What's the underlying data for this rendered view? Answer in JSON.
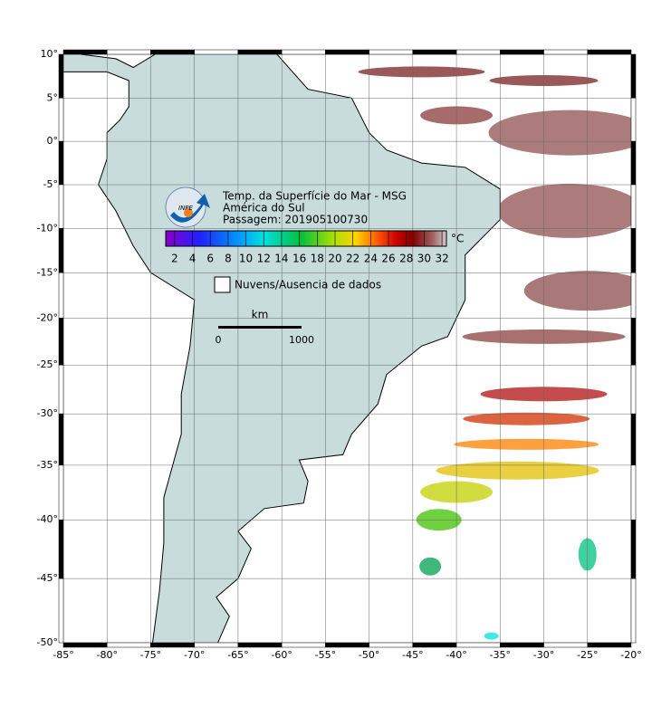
{
  "map": {
    "title_lines": [
      "Temp. da Superfície do Mar - MSG",
      "América do Sul",
      "Passagem: 201905100730"
    ],
    "logo_text": "INPE",
    "lonlim": [
      -85,
      -20
    ],
    "latlim": [
      -50,
      10
    ],
    "lonticks": [
      {
        "value": -85,
        "label": "-85°"
      },
      {
        "value": -80,
        "label": "-80°"
      },
      {
        "value": -75,
        "label": "-75°"
      },
      {
        "value": -70,
        "label": "-70°"
      },
      {
        "value": -65,
        "label": "-65°"
      },
      {
        "value": -60,
        "label": "-60°"
      },
      {
        "value": -55,
        "label": "-55°"
      },
      {
        "value": -50,
        "label": "-50°"
      },
      {
        "value": -45,
        "label": "-45°"
      },
      {
        "value": -40,
        "label": "-40°"
      },
      {
        "value": -35,
        "label": "-35°"
      },
      {
        "value": -30,
        "label": "-30°"
      },
      {
        "value": -25,
        "label": "-25°"
      },
      {
        "value": -20,
        "label": "-20°"
      }
    ],
    "latticks": [
      {
        "value": 10,
        "label": "10°"
      },
      {
        "value": 5,
        "label": "5°"
      },
      {
        "value": 0,
        "label": "0°"
      },
      {
        "value": -5,
        "label": "-5°"
      },
      {
        "value": -10,
        "label": "-10°"
      },
      {
        "value": -15,
        "label": "-15°"
      },
      {
        "value": -20,
        "label": "-20°"
      },
      {
        "value": -25,
        "label": "-25°"
      },
      {
        "value": -30,
        "label": "-30°"
      },
      {
        "value": -35,
        "label": "-35°"
      },
      {
        "value": -40,
        "label": "-40°"
      },
      {
        "value": -45,
        "label": "-45°"
      },
      {
        "value": -50,
        "label": "-50°"
      }
    ],
    "grid": true,
    "colorbar": {
      "unit": "°C",
      "range": [
        1,
        32.5
      ],
      "ticks": [
        2,
        4,
        6,
        8,
        10,
        12,
        14,
        16,
        18,
        20,
        22,
        24,
        26,
        28,
        30,
        32
      ]
    },
    "legend": {
      "label": "Nuvens/Ausencia de dados"
    },
    "scale_bar": {
      "unit": "km",
      "labels": [
        "0",
        "1000"
      ]
    }
  }
}
